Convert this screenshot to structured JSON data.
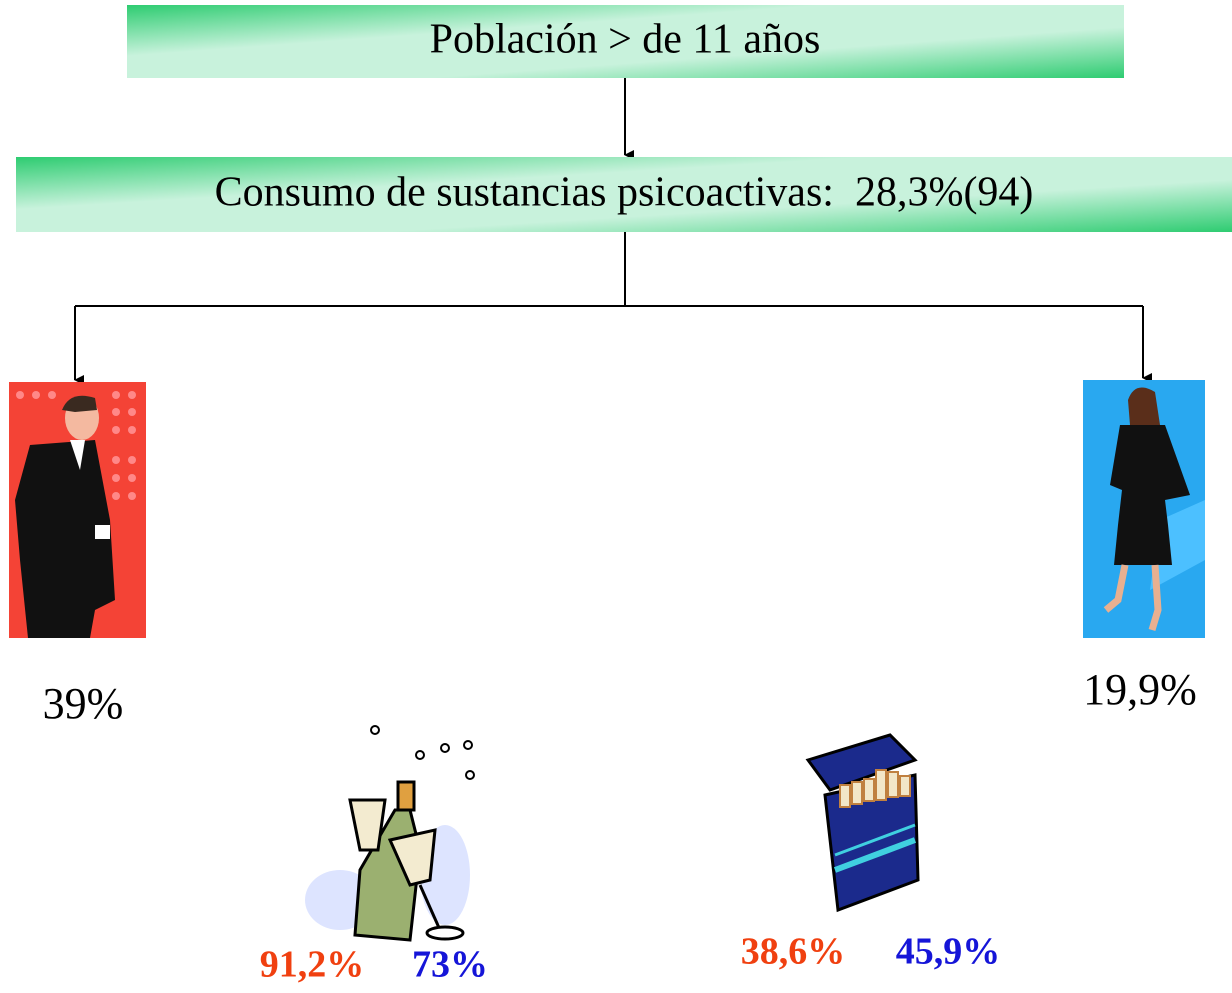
{
  "header": {
    "title": "Población > de 11 años"
  },
  "consumption": {
    "label": "Consumo de sustancias psicoactivas:  28,3%(94)"
  },
  "groups": [
    {
      "label": "39%"
    },
    {
      "label": "19,9%"
    }
  ],
  "substances": [
    {
      "men": "91,2%",
      "women": "73%"
    },
    {
      "men": "38,6%",
      "women": "45,9%"
    }
  ]
}
